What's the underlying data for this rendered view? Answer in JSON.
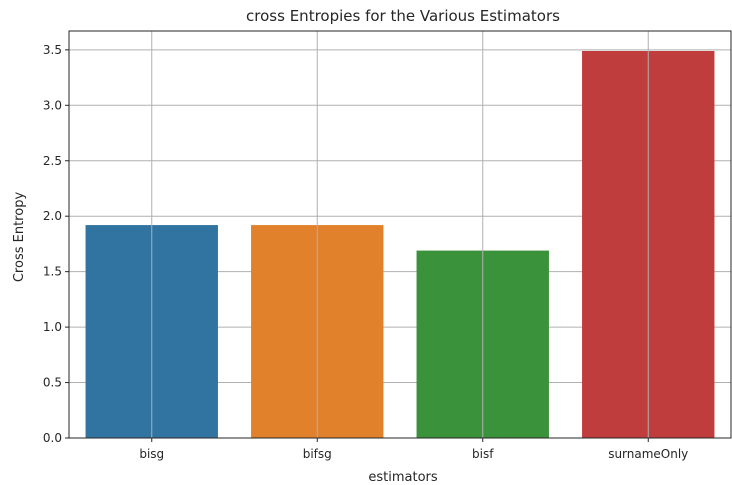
{
  "chart_data": {
    "type": "bar",
    "title": "cross Entropies for the Various Estimators",
    "xlabel": "estimators",
    "ylabel": "Cross Entropy",
    "categories": [
      "bisg",
      "bifsg",
      "bisf",
      "surnameOnly"
    ],
    "values": [
      1.92,
      1.92,
      1.69,
      3.49
    ],
    "colors": [
      "#3274a1",
      "#e1812c",
      "#3a923a",
      "#c03d3e"
    ],
    "ylim": [
      0,
      3.67
    ],
    "yticks": [
      0.0,
      0.5,
      1.0,
      1.5,
      2.0,
      2.5,
      3.0,
      3.5
    ],
    "ytick_labels": [
      "0.0",
      "0.5",
      "1.0",
      "1.5",
      "2.0",
      "2.5",
      "3.0",
      "3.5"
    ],
    "grid": true,
    "legend": "none"
  }
}
